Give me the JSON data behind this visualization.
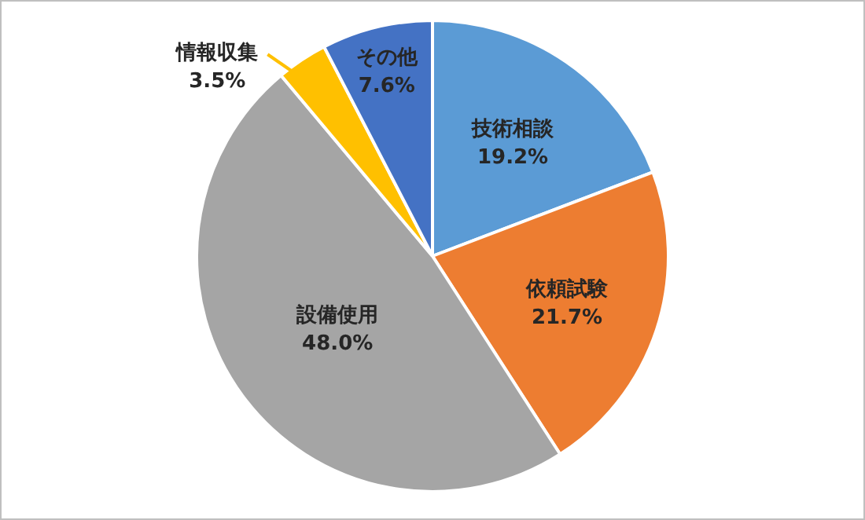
{
  "chart_data": {
    "type": "pie",
    "categories": [
      "技術相談",
      "依頼試験",
      "設備使用",
      "情報収集",
      "その他"
    ],
    "values": [
      19.2,
      21.7,
      48.0,
      3.5,
      7.6
    ],
    "value_labels": [
      "19.2%",
      "21.7%",
      "48.0%",
      "3.5%",
      "7.6%"
    ],
    "colors": [
      "#5b9bd5",
      "#ed7d31",
      "#a5a5a5",
      "#ffc000",
      "#4472c4"
    ]
  }
}
